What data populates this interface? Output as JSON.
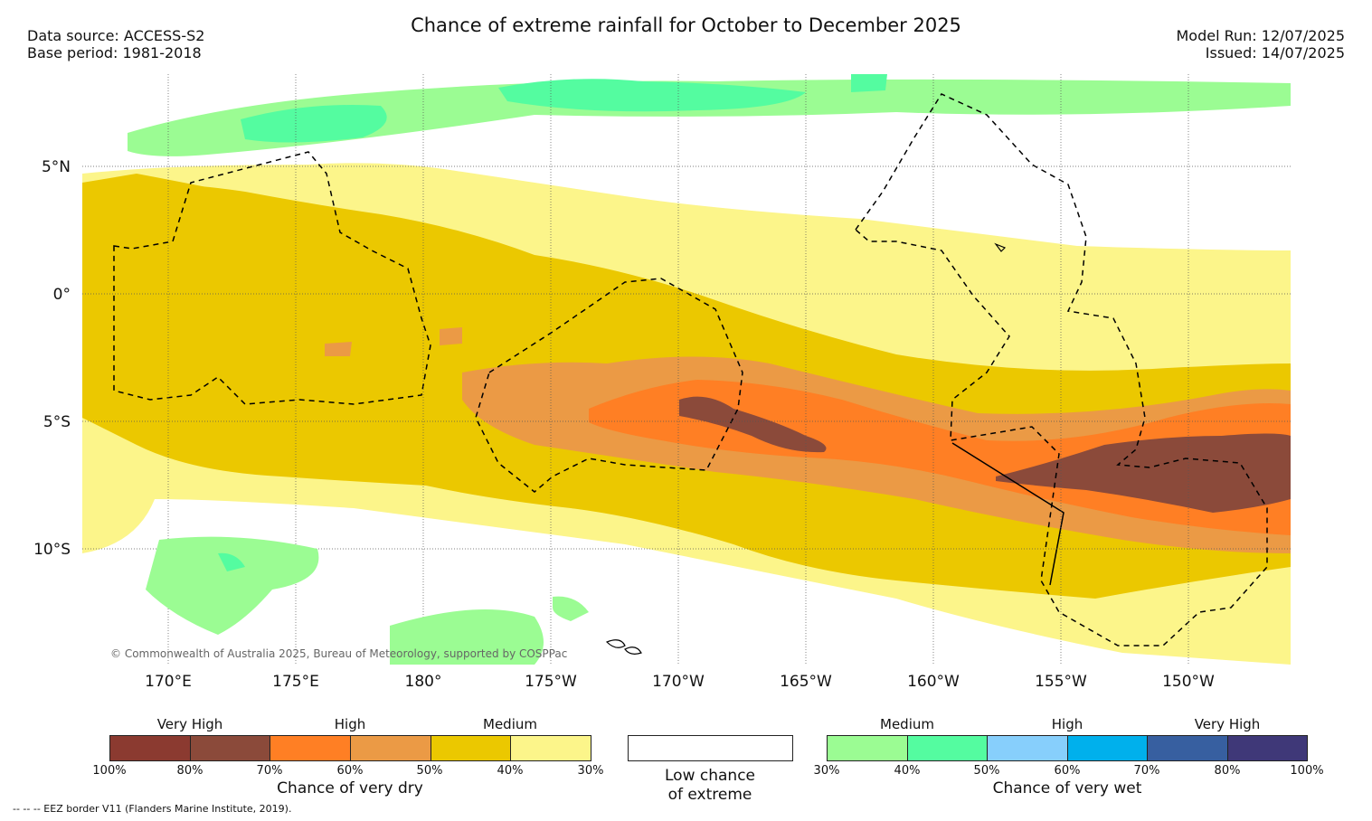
{
  "header": {
    "title": "Chance of extreme rainfall for October to December 2025",
    "data_source": "Data source: ACCESS-S2",
    "base_period": "Base period: 1981-2018",
    "model_run": "Model Run: 12/07/2025",
    "issued": "Issued: 14/07/2025"
  },
  "map": {
    "lat_labels": [
      "5°N",
      "0°",
      "5°S",
      "10°S"
    ],
    "lon_labels": [
      "170°E",
      "175°E",
      "180°",
      "175°W",
      "170°W",
      "165°W",
      "160°W",
      "155°W",
      "150°W"
    ],
    "copyright": "© Commonwealth of Australia 2025, Bureau of Meteorology, supported by COSPPac"
  },
  "legend": {
    "dry": {
      "levels": [
        "Very High",
        "High",
        "Medium"
      ],
      "ticks": [
        "100%",
        "80%",
        "70%",
        "60%",
        "50%",
        "40%",
        "30%"
      ],
      "caption": "Chance of very dry",
      "colors": [
        "#8b3a30",
        "#8b4a3a",
        "#ff7f24",
        "#eb9a45",
        "#ebc800",
        "#fcf58a"
      ]
    },
    "low": {
      "caption_line1": "Low chance",
      "caption_line2": "of extreme",
      "color": "#ffffff"
    },
    "wet": {
      "levels": [
        "Medium",
        "High",
        "Very High"
      ],
      "ticks": [
        "30%",
        "40%",
        "50%",
        "60%",
        "70%",
        "80%",
        "100%"
      ],
      "caption": "Chance of very wet",
      "colors": [
        "#9bfc93",
        "#54fca0",
        "#87cffc",
        "#00b0ec",
        "#375fa0",
        "#3f3878"
      ]
    }
  },
  "footer": {
    "eez_note": "-- -- -- EEZ border V11 (Flanders Marine Institute, 2019)."
  }
}
